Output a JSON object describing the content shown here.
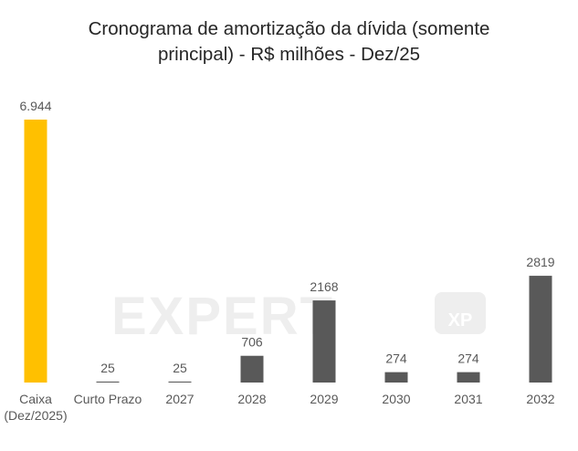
{
  "chart_data": {
    "type": "bar",
    "title": "Cronograma de amortização da dívida (somente\nprincipal) - R$ milhões - Dez/25",
    "categories": [
      [
        "Caixa",
        "(Dez/2025)"
      ],
      [
        "Curto Prazo"
      ],
      [
        "2027"
      ],
      [
        "2028"
      ],
      [
        "2029"
      ],
      [
        "2030"
      ],
      [
        "2031"
      ],
      [
        "2032"
      ]
    ],
    "values": [
      6944,
      25,
      25,
      706,
      2168,
      274,
      274,
      2819
    ],
    "value_labels": [
      "6.944",
      "25",
      "25",
      "706",
      "2168",
      "274",
      "274",
      "2819"
    ],
    "colors": [
      "#FFC000",
      "#595959",
      "#595959",
      "#595959",
      "#595959",
      "#595959",
      "#595959",
      "#595959"
    ],
    "ylim": [
      0,
      6944
    ],
    "grid": false,
    "legend": "none"
  },
  "watermark": {
    "text": "EXPERT",
    "logo_text": "XP"
  }
}
